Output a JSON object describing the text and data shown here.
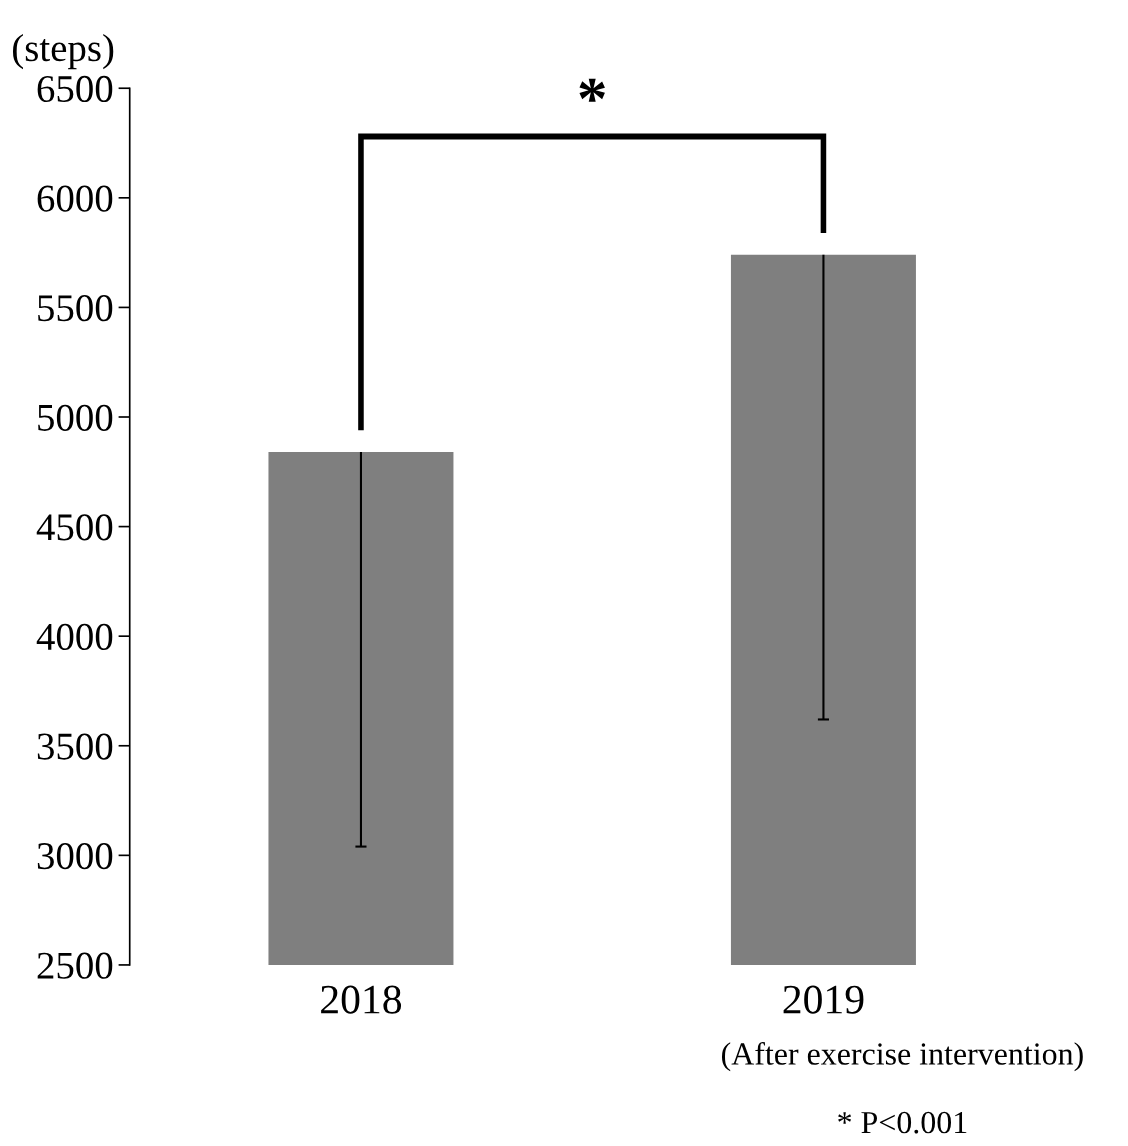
{
  "chart_data": {
    "type": "bar",
    "ylabel": "(steps)",
    "categories": [
      "2018",
      "2019"
    ],
    "values": [
      4840,
      5740
    ],
    "errors": [
      [
        3040,
        4840
      ],
      [
        3620,
        5740
      ]
    ],
    "color": "#7f7f7f",
    "ylim": [
      2500,
      6500
    ],
    "yticks": [
      2500,
      3000,
      3500,
      4000,
      4500,
      5000,
      5500,
      6000,
      6500
    ],
    "grid": false,
    "annotations": [
      "*",
      "(After exercise intervention)",
      "* P<0.001"
    ]
  }
}
